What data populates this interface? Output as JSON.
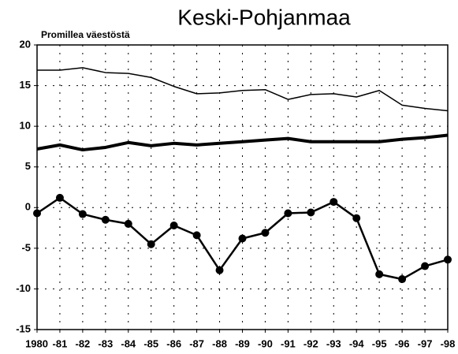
{
  "chart_data": {
    "type": "line",
    "title": "Keski-Pohjanmaa",
    "y_label": "Promillea väestöstä",
    "categories": [
      "1980",
      "-81",
      "-82",
      "-83",
      "-84",
      "-85",
      "-86",
      "-87",
      "-88",
      "-89",
      "-90",
      "-91",
      "-92",
      "-93",
      "-94",
      "-95",
      "-96",
      "-97",
      "-98"
    ],
    "series": [
      {
        "color": "#000000",
        "width": 1.5,
        "markers": false,
        "values": [
          16.9,
          16.9,
          17.2,
          16.6,
          16.5,
          16.0,
          14.9,
          14.0,
          14.1,
          14.4,
          14.5,
          13.3,
          13.9,
          14.0,
          13.6,
          14.4,
          12.6,
          12.2,
          11.9
        ]
      },
      {
        "color": "#000000",
        "width": 4,
        "markers": false,
        "values": [
          7.2,
          7.7,
          7.1,
          7.4,
          8.0,
          7.6,
          7.9,
          7.7,
          7.9,
          8.1,
          8.3,
          8.5,
          8.1,
          8.1,
          8.1,
          8.1,
          8.4,
          8.6,
          8.9
        ]
      },
      {
        "color": "#000000",
        "width": 2.5,
        "markers": true,
        "values": [
          -0.7,
          1.2,
          -0.8,
          -1.5,
          -2.0,
          -4.5,
          -2.2,
          -3.4,
          -7.7,
          -3.8,
          -3.1,
          -0.7,
          -0.6,
          0.7,
          -1.3,
          -8.2,
          -8.8,
          -7.2,
          -6.4
        ]
      }
    ],
    "ylim": [
      -15,
      20
    ],
    "yticks": [
      -15,
      -10,
      -5,
      0,
      5,
      10,
      15,
      20
    ],
    "grid": true
  }
}
